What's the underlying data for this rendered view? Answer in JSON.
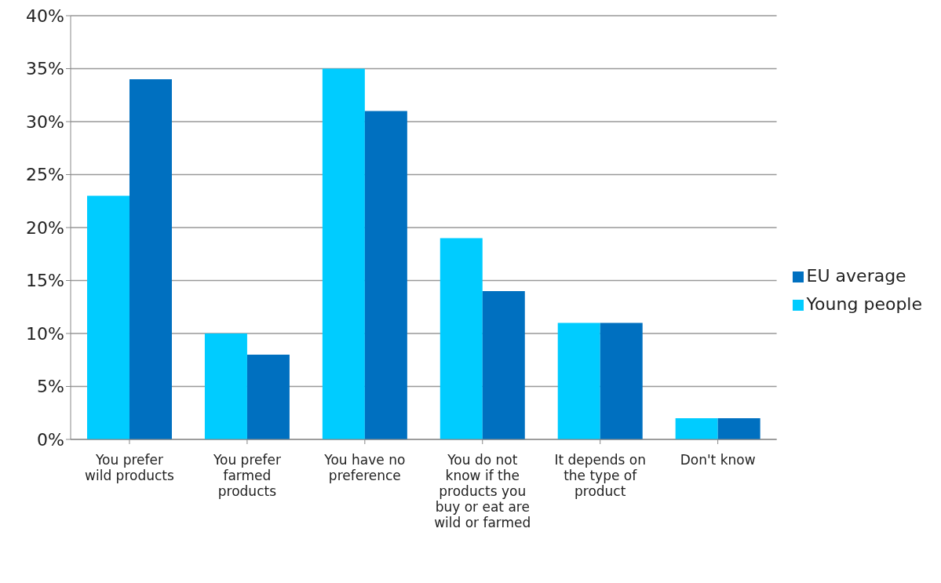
{
  "chart_data": {
    "type": "bar",
    "categories": [
      "You prefer wild products",
      "You prefer farmed products",
      "You have no preference",
      "You do not know if the products you buy or eat are wild or farmed",
      "It depends on the type of product",
      "Don't know"
    ],
    "series": [
      {
        "name": "Young people",
        "color": "#00ccff",
        "values": [
          23,
          10,
          35,
          19,
          11,
          2
        ]
      },
      {
        "name": "EU average",
        "color": "#0070c0",
        "values": [
          34,
          8,
          31,
          14,
          11,
          2
        ]
      }
    ],
    "ylim": [
      0,
      40
    ],
    "yticks": [
      {
        "value": 0,
        "label": "0%"
      },
      {
        "value": 5,
        "label": "5%"
      },
      {
        "value": 10,
        "label": "10%"
      },
      {
        "value": 15,
        "label": "15%"
      },
      {
        "value": 20,
        "label": "20%"
      },
      {
        "value": 25,
        "label": "25%"
      },
      {
        "value": 30,
        "label": "30%"
      },
      {
        "value": 35,
        "label": "35%"
      },
      {
        "value": 40,
        "label": "40%"
      }
    ],
    "grid": "y",
    "legend": "right"
  }
}
